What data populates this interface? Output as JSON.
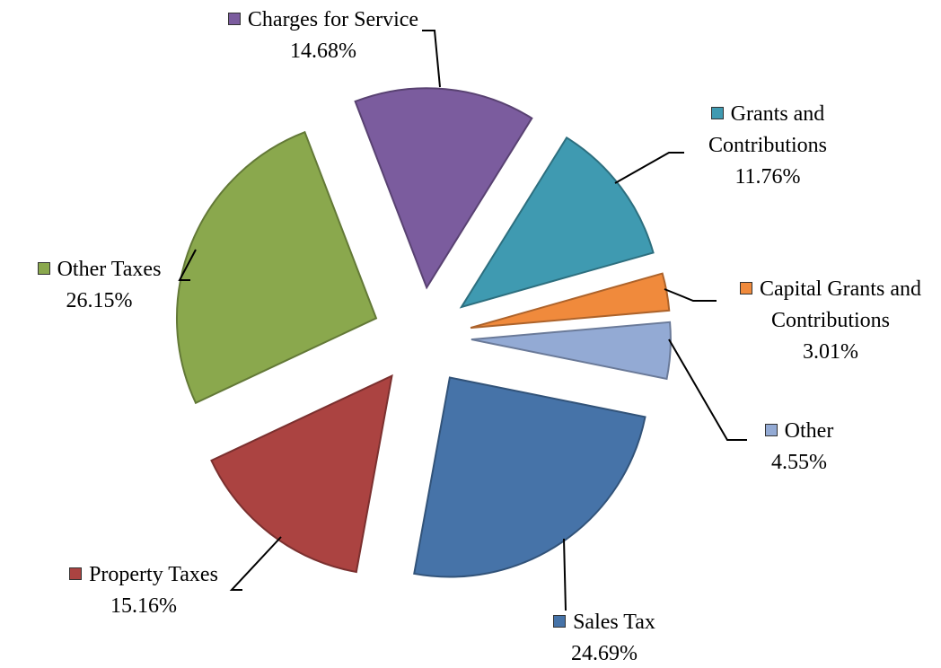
{
  "chart_data": {
    "type": "pie",
    "categories": [
      "Charges for Service",
      "Grants and Contributions",
      "Capital Grants and Contributions",
      "Other",
      "Sales Tax",
      "Property Taxes",
      "Other Taxes"
    ],
    "values": [
      14.68,
      11.76,
      3.01,
      4.55,
      24.69,
      15.16,
      26.15
    ],
    "value_labels": [
      "14.68%",
      "11.76%",
      "3.01%",
      "4.55%",
      "24.69%",
      "15.16%",
      "26.15%"
    ],
    "colors": [
      "#7b5c9e",
      "#3f9ab1",
      "#f08a3c",
      "#93aad4",
      "#4673a8",
      "#ab4341",
      "#8aa84d"
    ]
  }
}
